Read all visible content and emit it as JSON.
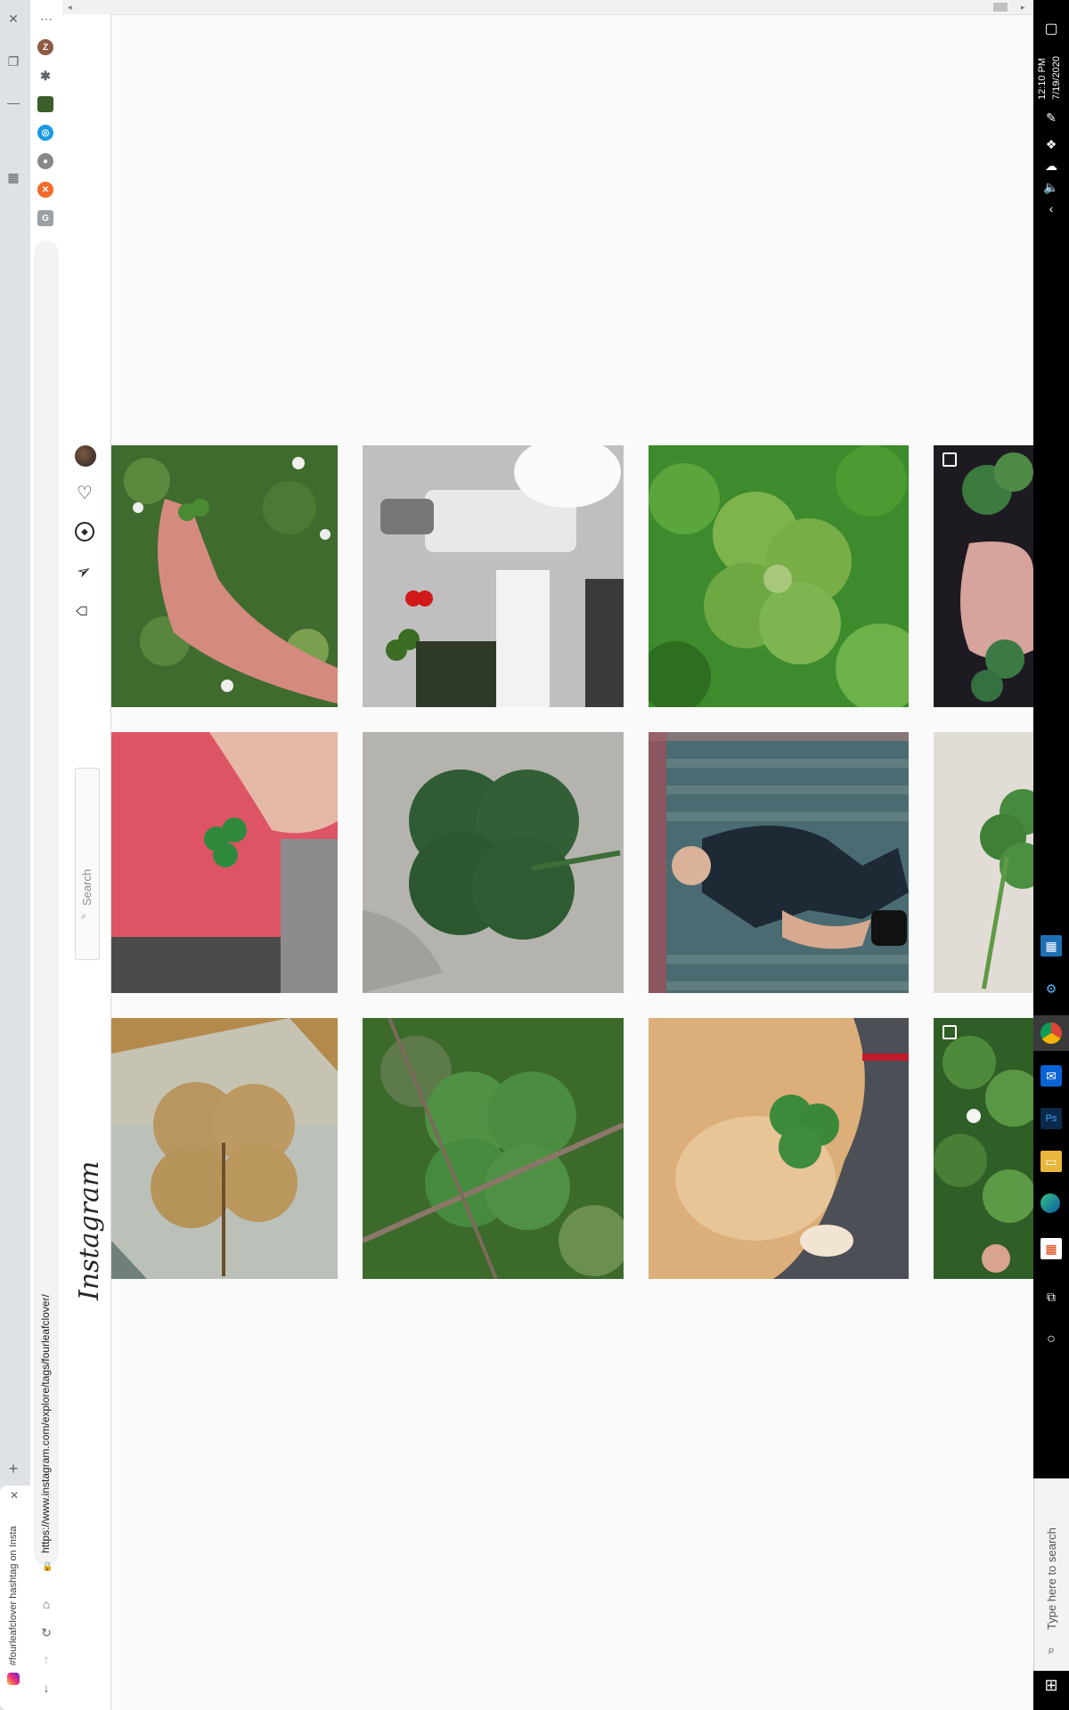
{
  "browser": {
    "tab_title": "#fourleafclover hashtag on Insta",
    "url": "https://www.instagram.com/explore/tags/fourleafclover/",
    "new_tab_symbol": "+",
    "profile_initial": "Z"
  },
  "instagram": {
    "logo": "Instagram",
    "search_placeholder": "Search",
    "nav_icons": [
      "home-icon",
      "direct-icon",
      "explore-icon",
      "activity-icon",
      "profile-avatar"
    ]
  },
  "taskbar": {
    "time": "12:10 PM",
    "date": "7/19/2020",
    "search_placeholder": "Type here to search"
  },
  "posts": [
    {
      "subject": "hand holding clover among clover flowers",
      "multi": false
    },
    {
      "subject": "teapot with clover and red heart",
      "multi": false
    },
    {
      "subject": "green four leaf clover closeup",
      "multi": false
    },
    {
      "subject": "finger with clovers on dark soil",
      "multi": true
    },
    {
      "subject": "fingers holding clover over pink shirt",
      "multi": false
    },
    {
      "subject": "dark green clover on grey fabric",
      "multi": false
    },
    {
      "subject": "man sitting on stairs",
      "multi": false
    },
    {
      "subject": "clover on beige background",
      "multi": false
    },
    {
      "subject": "pressed dried clover in resin",
      "multi": false
    },
    {
      "subject": "clover patch with twigs",
      "multi": false
    },
    {
      "subject": "dog with clover",
      "multi": false
    },
    {
      "subject": "clovers with white flower",
      "multi": true
    }
  ]
}
